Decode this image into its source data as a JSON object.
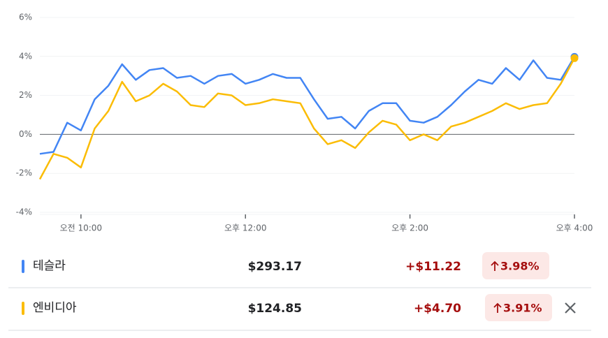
{
  "chart_data": {
    "type": "line",
    "x": [
      "09:30",
      "09:40",
      "09:50",
      "10:00",
      "10:10",
      "10:20",
      "10:30",
      "10:40",
      "10:50",
      "11:00",
      "11:10",
      "11:20",
      "11:30",
      "11:40",
      "11:50",
      "12:00",
      "12:10",
      "12:20",
      "12:30",
      "12:40",
      "12:50",
      "13:00",
      "13:10",
      "13:20",
      "13:30",
      "13:40",
      "13:50",
      "14:00",
      "14:10",
      "14:20",
      "14:30",
      "14:40",
      "14:50",
      "15:00",
      "15:10",
      "15:20",
      "15:30",
      "15:40",
      "15:50",
      "16:00"
    ],
    "series": [
      {
        "name": "테슬라",
        "color": "#4285f4",
        "values": [
          -1.0,
          -0.9,
          0.6,
          0.2,
          1.8,
          2.5,
          3.6,
          2.8,
          3.3,
          3.4,
          2.9,
          3.0,
          2.6,
          3.0,
          3.1,
          2.6,
          2.8,
          3.1,
          2.9,
          2.9,
          1.8,
          0.8,
          0.9,
          0.3,
          1.2,
          1.6,
          1.6,
          0.7,
          0.6,
          0.9,
          1.5,
          2.2,
          2.8,
          2.6,
          3.4,
          2.8,
          3.8,
          2.9,
          2.8,
          3.98
        ]
      },
      {
        "name": "엔비디아",
        "color": "#fbbc04",
        "values": [
          -2.3,
          -1.0,
          -1.2,
          -1.7,
          0.3,
          1.2,
          2.7,
          1.7,
          2.0,
          2.6,
          2.2,
          1.5,
          1.4,
          2.1,
          2.0,
          1.5,
          1.6,
          1.8,
          1.7,
          1.6,
          0.3,
          -0.5,
          -0.3,
          -0.7,
          0.1,
          0.7,
          0.5,
          -0.3,
          0.0,
          -0.3,
          0.4,
          0.6,
          0.9,
          1.2,
          1.6,
          1.3,
          1.5,
          1.6,
          2.6,
          3.91
        ]
      }
    ],
    "xlim": [
      "09:30",
      "16:00"
    ],
    "xticks": [
      {
        "value": "10:00",
        "label": "오전 10:00"
      },
      {
        "value": "12:00",
        "label": "오후 12:00"
      },
      {
        "value": "14:00",
        "label": "오후 2:00"
      },
      {
        "value": "16:00",
        "label": "오후 4:00"
      }
    ],
    "ylim": [
      -4,
      6
    ],
    "yticks": [
      {
        "value": -4,
        "label": "-4%"
      },
      {
        "value": -2,
        "label": "-2%"
      },
      {
        "value": 0,
        "label": "0%"
      },
      {
        "value": 2,
        "label": "2%"
      },
      {
        "value": 4,
        "label": "4%"
      },
      {
        "value": 6,
        "label": "6%"
      }
    ],
    "grid": true
  },
  "quotes": [
    {
      "price": "$293.17",
      "change": "+$11.22",
      "change_percent": "3.98%"
    },
    {
      "price": "$124.85",
      "change": "+$4.70",
      "change_percent": "3.91%"
    }
  ]
}
